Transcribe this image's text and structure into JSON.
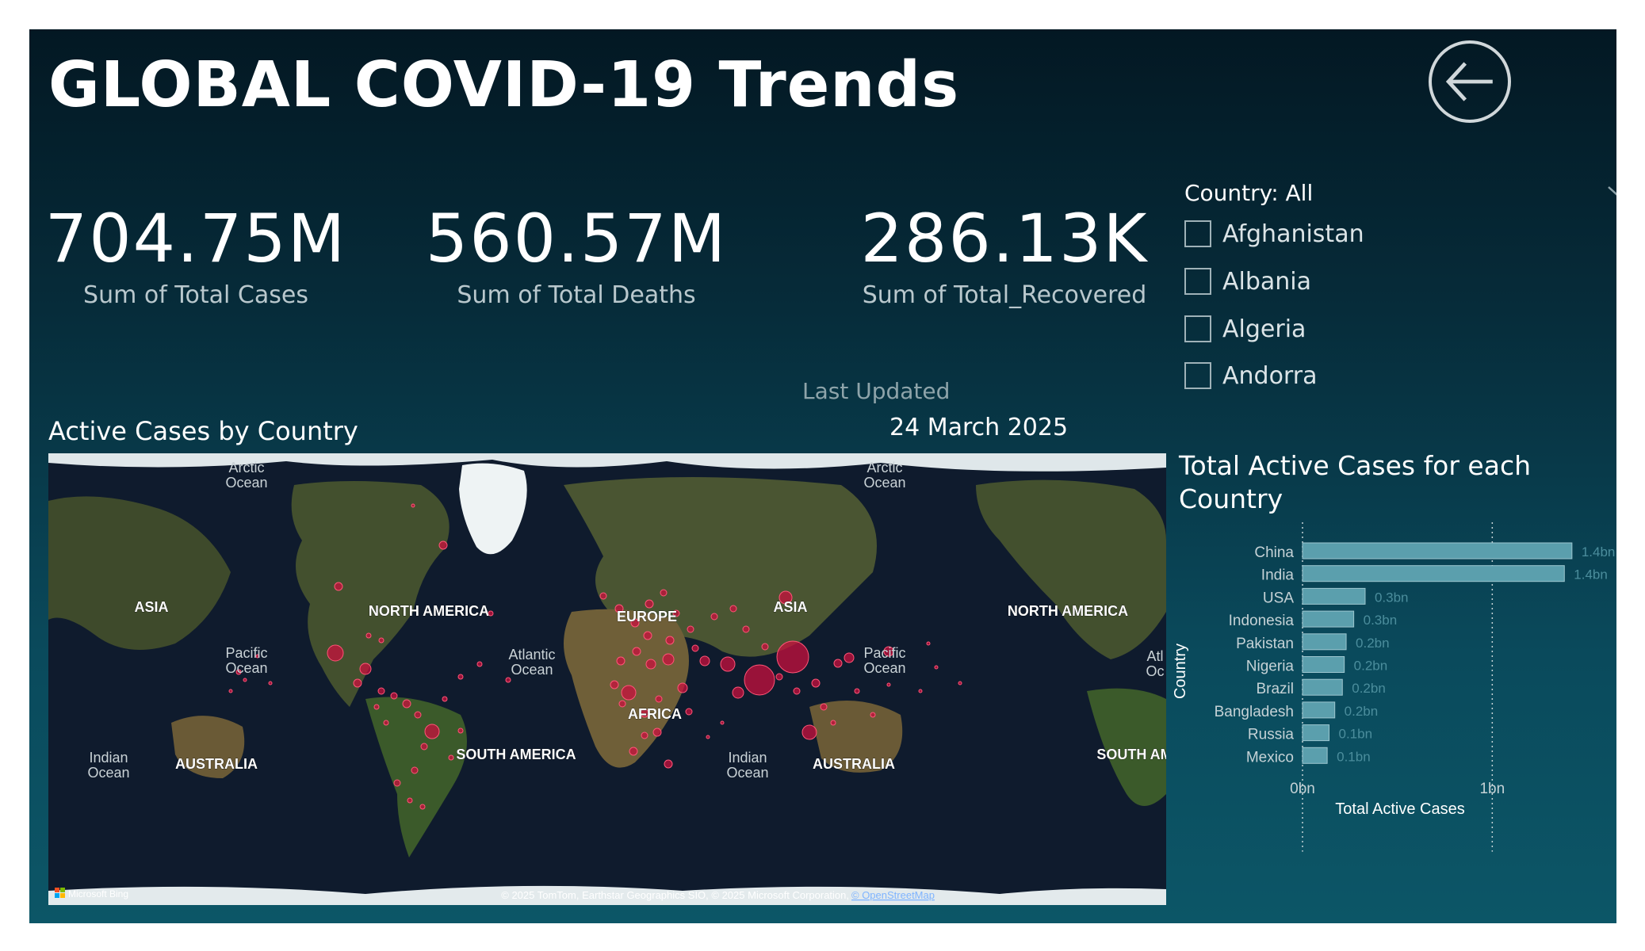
{
  "header": {
    "title": "GLOBAL COVID-19 Trends",
    "back_icon": "back-arrow-icon"
  },
  "kpis": {
    "cases": {
      "value": "704.75M",
      "label": "Sum of Total Cases"
    },
    "deaths": {
      "value": "560.57M",
      "label": "Sum of Total Deaths"
    },
    "recovered": {
      "value": "286.13K",
      "label": "Sum of Total_Recovered"
    }
  },
  "slicer": {
    "title": "Country: All",
    "items": [
      "Afghanistan",
      "Albania",
      "Algeria",
      "Andorra"
    ]
  },
  "last_updated": {
    "label": "Last Updated",
    "date": "24 March 2025"
  },
  "map": {
    "title": "Active Cases by Country",
    "labels": {
      "arctic": "Arctic",
      "ocean": "Ocean",
      "asia": "ASIA",
      "north_america": "NORTH AMERICA",
      "pacific": "Pacific",
      "atlantic": "Atlantic",
      "europe": "EUROPE",
      "africa": "AFRICA",
      "south_america": "SOUTH AMERICA",
      "indian": "Indian",
      "australia": "AUSTRALIA",
      "south_am_cut": "SOUTH AM",
      "atl_cut": "Atl",
      "oc_cut": "Oc"
    },
    "attribution": "© 2025 TomTom, Earthstar Geographics SIO, © 2025 Microsoft Corporation,",
    "attribution_link": "© OpenStreetMap",
    "bing_logo": "Microsoft Bing",
    "colors": {
      "water": "#0f1b2d",
      "land": "#3f4a2c",
      "ice": "#e8eef0",
      "bubble": "#c8103e"
    }
  },
  "chart_data": {
    "type": "bar",
    "title": "Total Active Cases for each Country",
    "xlabel": "Total Active Cases",
    "ylabel": "Country",
    "categories": [
      "China",
      "India",
      "USA",
      "Indonesia",
      "Pakistan",
      "Nigeria",
      "Brazil",
      "Bangladesh",
      "Russia",
      "Mexico"
    ],
    "values": [
      1.42,
      1.38,
      0.33,
      0.27,
      0.23,
      0.22,
      0.21,
      0.17,
      0.14,
      0.13
    ],
    "data_labels": [
      "1.4bn",
      "1.4bn",
      "0.3bn",
      "0.3bn",
      "0.2bn",
      "0.2bn",
      "0.2bn",
      "0.2bn",
      "0.1bn",
      "0.1bn"
    ],
    "xticks": [
      "0bn",
      "1bn"
    ],
    "xlim": [
      0,
      1.5
    ],
    "bar_color": "#5b9fad",
    "grid": "vertical dotted"
  }
}
